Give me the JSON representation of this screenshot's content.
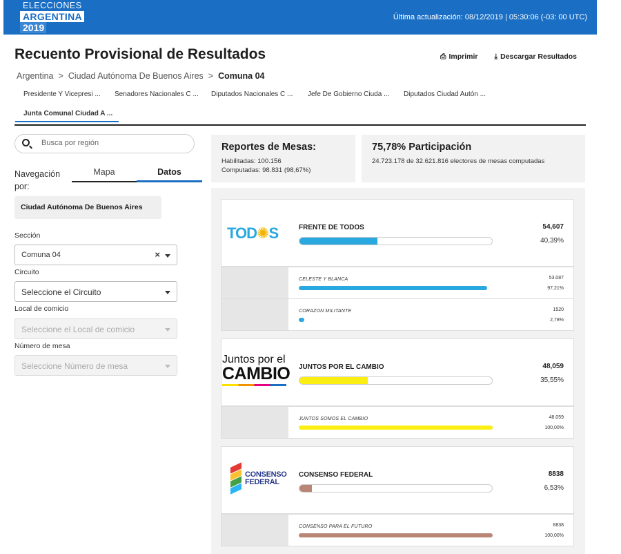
{
  "header": {
    "logo": {
      "line1": "ELECCIONES",
      "line2": "ARGENTINA",
      "line3": "2019"
    },
    "last_update": "Última actualización: 08/12/2019 | 05:30:06 (-03: 00 UTC)"
  },
  "page_title": "Recuento Provisional de Resultados",
  "actions": {
    "print": "Imprimir",
    "download": "Descargar Resultados"
  },
  "breadcrumb": {
    "items": [
      "Argentina",
      "Ciudad Autónoma De Buenos Aires"
    ],
    "current": "Comuna 04",
    "separator": ">"
  },
  "tabs": [
    {
      "label": "Presidente Y Vicepresi ..."
    },
    {
      "label": "Senadores Nacionales C ..."
    },
    {
      "label": "Diputados Nacionales C ..."
    },
    {
      "label": "Jefe De Gobierno Ciuda ..."
    },
    {
      "label": "Diputados Ciudad Autón ..."
    },
    {
      "label": "Junta Comunal Ciudad A ..."
    }
  ],
  "sidebar": {
    "search_placeholder": "Busca por región",
    "nav_label": "Navegación por:",
    "segment_mapa": "Mapa",
    "segment_datos": "Datos",
    "region": "Ciudad Autónoma De Buenos Aires",
    "seccion_label": "Sección",
    "seccion_value": "Comuna 04",
    "circuito_label": "Circuito",
    "circuito_placeholder": "Seleccione el Circuito",
    "local_label": "Local de comicio",
    "local_placeholder": "Seleccione el Local de comicio",
    "mesa_label": "Número de mesa",
    "mesa_placeholder": "Seleccione Número de mesa"
  },
  "stats": {
    "mesas_title": "Reportes de Mesas:",
    "habilitadas": "Habilitadas: 100.156",
    "computadas": "Computadas: 98.831 (98,67%)",
    "participacion_title": "75,78% Participación",
    "electores": "24.723.178 de 32.621.816 electores de mesas computadas"
  },
  "parties": [
    {
      "name": "FRENTE DE TODOS",
      "votes": "54,607",
      "pct": "40,39%",
      "share": 40.39,
      "color": "#2aa8e0",
      "logo": "todos-logo",
      "logo_text_a": "TOD",
      "logo_text_sun": "✺",
      "logo_text_b": "S",
      "lists": [
        {
          "name": "CELESTE Y BLANCA",
          "votes": "53.087",
          "pct": "97,21%",
          "share": 97.21
        },
        {
          "name": "CORAZON MILITANTE",
          "votes": "1520",
          "pct": "2,78%",
          "share": 2.78
        }
      ]
    },
    {
      "name": "JUNTOS POR EL CAMBIO",
      "votes": "48,059",
      "pct": "35,55%",
      "share": 35.55,
      "color": "#fbee13",
      "logo": "juntos-por-el-cambio-logo",
      "logo_text_a": "Juntos por el",
      "logo_text_b": "CAMBIO",
      "lists": [
        {
          "name": "JUNTOS SOMOS EL CAMBIO",
          "votes": "48.059",
          "pct": "100,00%",
          "share": 100.0
        }
      ]
    },
    {
      "name": "CONSENSO FEDERAL",
      "votes": "8838",
      "pct": "6,53%",
      "share": 6.53,
      "color": "#b98676",
      "logo": "consenso-federal-logo",
      "logo_text_a": "CONSENSO",
      "logo_text_b": "FEDERAL",
      "lists": [
        {
          "name": "CONSENSO PARA EL FUTURO",
          "votes": "8838",
          "pct": "100,00%",
          "share": 100.0
        }
      ]
    }
  ]
}
